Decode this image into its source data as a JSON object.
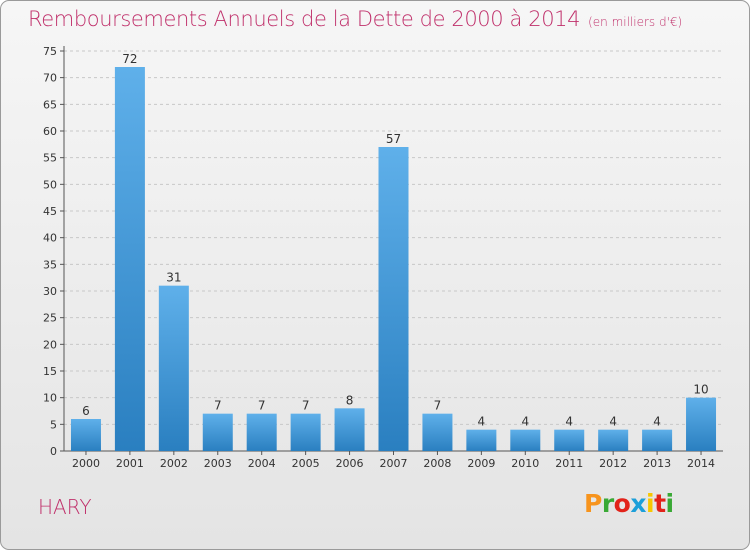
{
  "header": {
    "title": "Remboursements Annuels de la Dette de 2000 à 2014",
    "subtitle": "(en milliers d'€)"
  },
  "footer": {
    "commune": "HARY",
    "logo_letters": [
      "P",
      "r",
      "o",
      "x",
      "i",
      "t",
      "i"
    ],
    "logo_colors": [
      "#f7941d",
      "#39a935",
      "#e2231a",
      "#1c9fd9",
      "#f7c700",
      "#e2231a",
      "#39a935"
    ]
  },
  "chart_data": {
    "type": "bar",
    "title": "Remboursements Annuels de la Dette de 2000 à 2014",
    "subtitle": "(en milliers d'€)",
    "categories": [
      "2000",
      "2001",
      "2002",
      "2003",
      "2004",
      "2005",
      "2006",
      "2007",
      "2008",
      "2009",
      "2010",
      "2011",
      "2012",
      "2013",
      "2014"
    ],
    "values": [
      6,
      72,
      31,
      7,
      7,
      7,
      8,
      57,
      7,
      4,
      4,
      4,
      4,
      4,
      10
    ],
    "ylim": [
      0,
      75
    ],
    "yticks": [
      0,
      5,
      10,
      15,
      20,
      25,
      30,
      35,
      40,
      45,
      50,
      55,
      60,
      65,
      70,
      75
    ],
    "grid": "horizontal dashed",
    "bar_color_light": "#5fb0ea",
    "bar_color_dark": "#2a7fc0"
  }
}
